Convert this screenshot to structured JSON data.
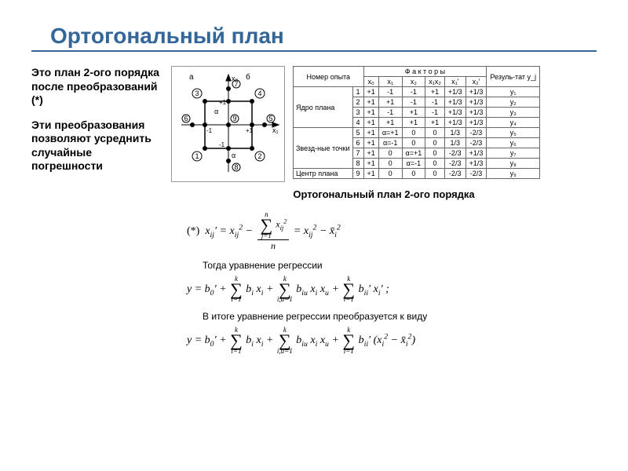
{
  "title": "Ортогональный план",
  "intro1": "Это план 2-ого порядка после преобразований (*)",
  "intro2": "Эти преобразования позволяют усреднить случайные погрешности",
  "caption": "Ортогональный план 2-ого порядка",
  "table": {
    "header_top": [
      "Номер опыта",
      "Ф а к т о р ы",
      "Резуль-тат y_j"
    ],
    "factor_cols": [
      "x₀",
      "x₁",
      "x₂",
      "x₁x₂",
      "x₁'",
      "x₂'"
    ],
    "sections": [
      {
        "label": "Ядро плана",
        "rows": [
          {
            "n": "1",
            "c": [
              "+1",
              "-1",
              "-1",
              "+1",
              "+1/3",
              "+1/3"
            ],
            "y": "y₁"
          },
          {
            "n": "2",
            "c": [
              "+1",
              "+1",
              "-1",
              "-1",
              "+1/3",
              "+1/3"
            ],
            "y": "y₂"
          },
          {
            "n": "3",
            "c": [
              "+1",
              "-1",
              "+1",
              "-1",
              "+1/3",
              "+1/3"
            ],
            "y": "y₃"
          },
          {
            "n": "4",
            "c": [
              "+1",
              "+1",
              "+1",
              "+1",
              "+1/3",
              "+1/3"
            ],
            "y": "y₄"
          }
        ]
      },
      {
        "label": "Звезд-ные точки",
        "rows": [
          {
            "n": "5",
            "c": [
              "+1",
              "α=+1",
              "0",
              "0",
              "1/3",
              "-2/3"
            ],
            "y": "y₅"
          },
          {
            "n": "6",
            "c": [
              "+1",
              "α=-1",
              "0",
              "0",
              "1/3",
              "-2/3"
            ],
            "y": "y₆"
          },
          {
            "n": "7",
            "c": [
              "+1",
              "0",
              "α=+1",
              "0",
              "-2/3",
              "+1/3"
            ],
            "y": "y₇"
          },
          {
            "n": "8",
            "c": [
              "+1",
              "0",
              "α=-1",
              "0",
              "-2/3",
              "+1/3"
            ],
            "y": "y₈"
          }
        ]
      },
      {
        "label": "Центр плана",
        "rows": [
          {
            "n": "9",
            "c": [
              "+1",
              "0",
              "0",
              "0",
              "-2/3",
              "-2/3"
            ],
            "y": "y₉"
          }
        ]
      }
    ]
  },
  "diagram": {
    "width": 135,
    "height": 135,
    "axis_color": "#000",
    "square_color": "#000",
    "point_radius": 3,
    "labels_a_b": [
      "а",
      "б"
    ],
    "axis_labels": [
      "x₁",
      "x₂"
    ],
    "tick_labels": [
      "-1",
      "+1"
    ],
    "alpha": "α",
    "corner_numbers": [
      "1",
      "2",
      "3",
      "4"
    ],
    "star_numbers": [
      "5",
      "6",
      "7",
      "8"
    ],
    "center_number": "9"
  },
  "formula_star_label": "(*)",
  "formula_star_text": "x′ᵢⱼ = xᵢⱼ² − (Σⱼ₌₁ⁿ xᵢⱼ²)/n = xᵢⱼ² − x̄ᵢ²",
  "formula2_label": "Тогда уравнение регрессии",
  "formula3_label": "В итоге уравнение регрессии преобразуется к виду",
  "colors": {
    "title": "#336699",
    "rule": "#336699",
    "text": "#000000",
    "table_border": "#666666",
    "diagram_border": "#999999"
  }
}
